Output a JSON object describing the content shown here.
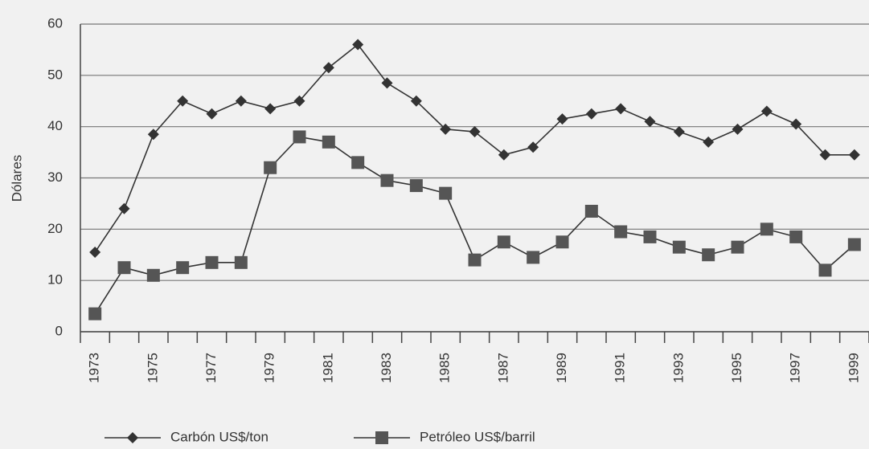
{
  "chart_data": {
    "type": "line",
    "y_label": "Dólares",
    "categories": [
      "1973",
      null,
      "1975",
      null,
      "1977",
      null,
      "1979",
      null,
      "1981",
      null,
      "1983",
      null,
      "1985",
      null,
      "1987",
      null,
      "1989",
      null,
      "1991",
      null,
      "1993",
      null,
      "1995",
      null,
      "1997",
      null,
      "1999"
    ],
    "series": [
      {
        "name": "Carbón US$/ton",
        "color": "#333333",
        "marker": "diamond",
        "values": [
          15.5,
          24,
          38.5,
          45,
          42.5,
          45,
          43.5,
          45,
          51.5,
          56,
          48.5,
          45,
          39.5,
          39,
          34.5,
          36,
          41.5,
          42.5,
          43.5,
          41,
          39,
          37,
          39.5,
          43,
          40.5,
          34.5,
          34.5
        ]
      },
      {
        "name": "Petróleo US$/barril",
        "color": "#333333",
        "marker": "square",
        "values": [
          3.5,
          12.5,
          11,
          12.5,
          13.5,
          13.5,
          32,
          38,
          37,
          33,
          29.5,
          28.5,
          27,
          14,
          17.5,
          14.5,
          17.5,
          23.5,
          19.5,
          18.5,
          16.5,
          15,
          16.5,
          20,
          18.5,
          12,
          17
        ]
      }
    ],
    "ylim": [
      0,
      60
    ],
    "yticks": [
      0,
      10,
      20,
      30,
      40,
      50,
      60
    ],
    "grid": true
  }
}
